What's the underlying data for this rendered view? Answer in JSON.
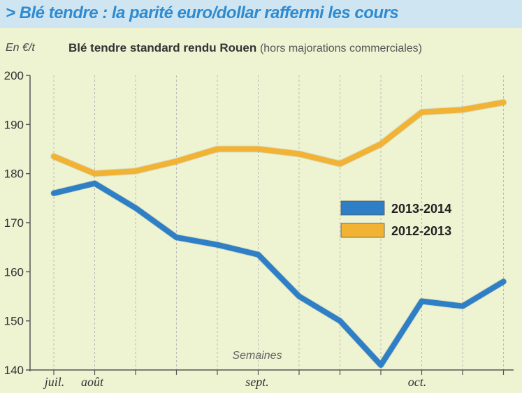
{
  "header": {
    "headline": "> Blé tendre : la parité euro/dollar raffermi les cours"
  },
  "chart_data": {
    "type": "line",
    "title": "Blé tendre standard rendu Rouen",
    "subtitle": "(hors majorations commerciales)",
    "ylabel": "En €/t",
    "xlabel": "Semaines",
    "ylim": [
      140,
      200
    ],
    "yticks": [
      140,
      150,
      160,
      170,
      180,
      190,
      200
    ],
    "month_labels": [
      "juil.",
      "août",
      "sept.",
      "oct."
    ],
    "legend_position": "right-center",
    "grid": "vertical dashed",
    "series": [
      {
        "name": "2013-2014",
        "color": "#2e7fc5",
        "values": [
          176,
          178,
          173,
          167,
          165.5,
          163.5,
          155,
          150,
          141,
          154,
          153,
          158
        ]
      },
      {
        "name": "2012-2013",
        "color": "#f2b233",
        "values": [
          183.5,
          180,
          180.5,
          182.5,
          185,
          185,
          184,
          182,
          186,
          192.5,
          193,
          194.5
        ]
      }
    ]
  }
}
